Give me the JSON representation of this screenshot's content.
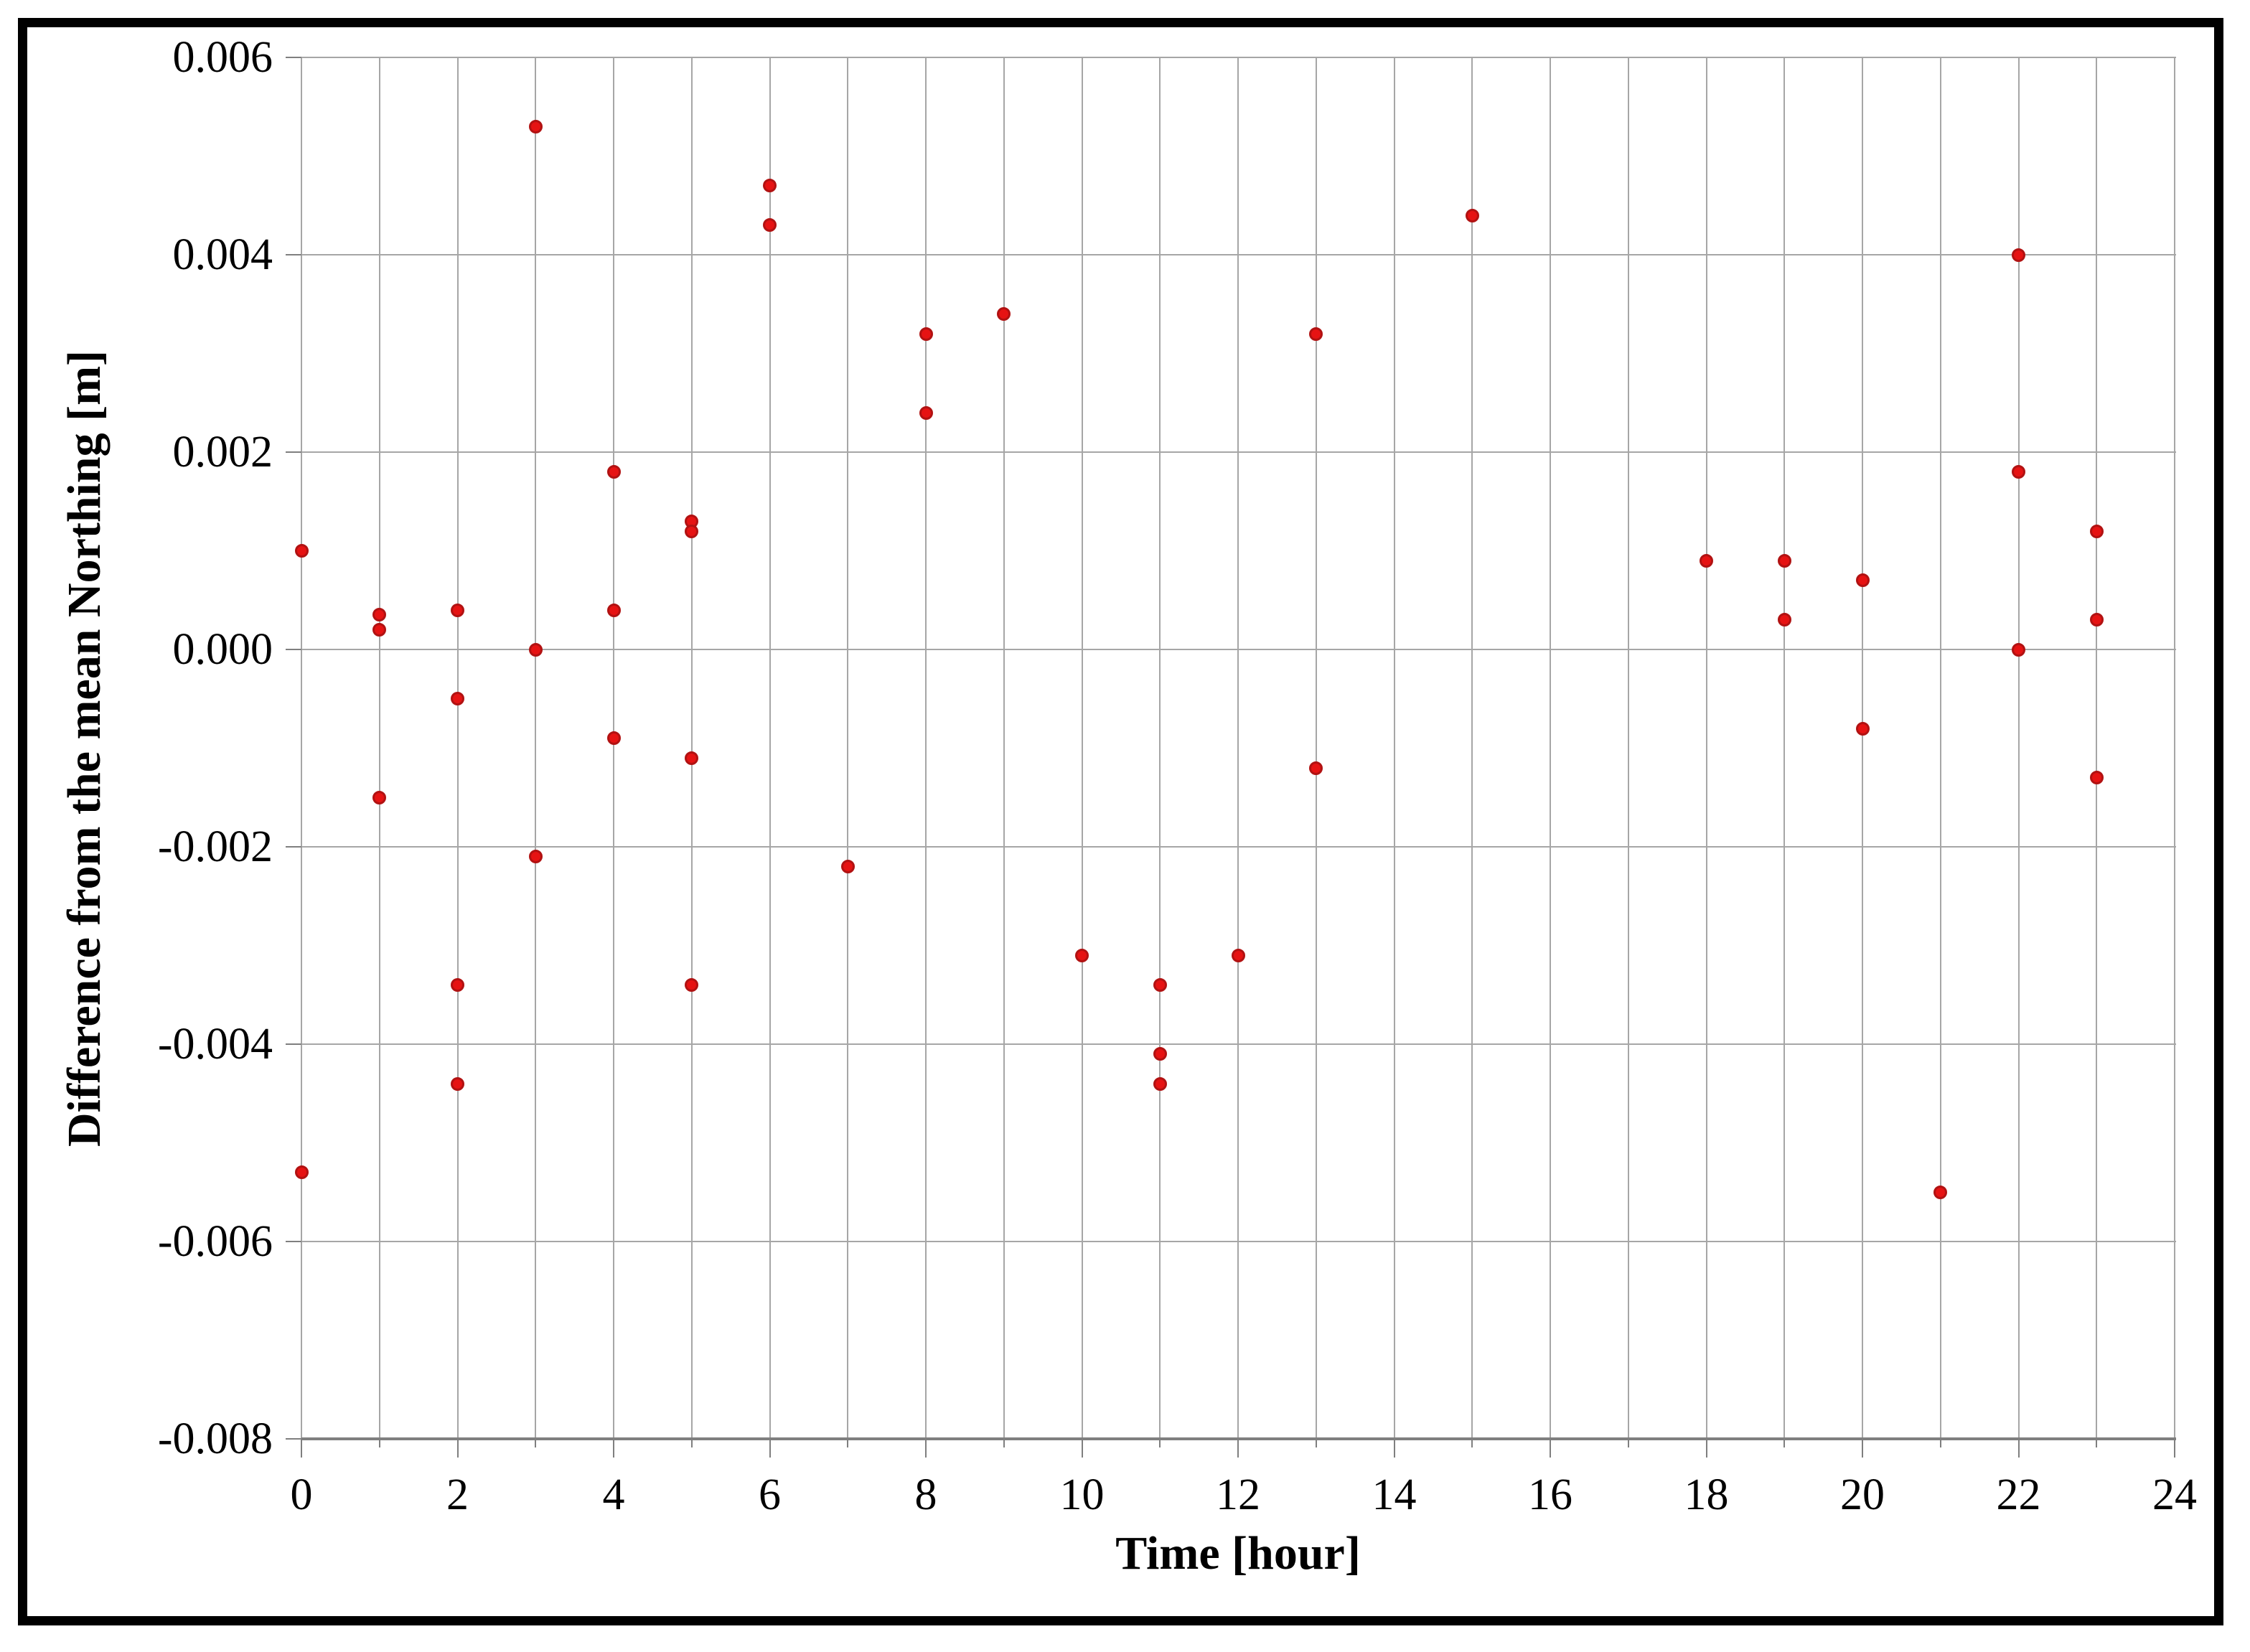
{
  "figure": {
    "background": "#ffffff",
    "frame_color": "#000000"
  },
  "chart_data": {
    "type": "scatter",
    "title": "",
    "xlabel": "Time [hour]",
    "ylabel": "Difference from the mean Northing  [m]",
    "xlim": [
      0,
      24
    ],
    "ylim": [
      -0.008,
      0.006
    ],
    "grid": true,
    "x_gridline_step": 1,
    "y_gridline_step": 0.002,
    "legend_position": "none",
    "marker_color": "#e61313",
    "marker_edge_color": "#b11212",
    "gridline_color": "#a6a6a6",
    "axis_color": "#7f7f7f",
    "x_ticks": [
      0,
      2,
      4,
      6,
      8,
      10,
      12,
      14,
      16,
      18,
      20,
      22,
      24
    ],
    "x_tick_labels": [
      "0",
      "2",
      "4",
      "6",
      "8",
      "10",
      "12",
      "14",
      "16",
      "18",
      "20",
      "22",
      "24"
    ],
    "y_ticks": [
      0.006,
      0.004,
      0.002,
      0.0,
      -0.002,
      -0.004,
      -0.006,
      -0.008
    ],
    "y_tick_labels": [
      "0.006",
      "0.004",
      "0.002",
      "0.000",
      "-0.002",
      "-0.004",
      "-0.006",
      "-0.008"
    ],
    "points": [
      [
        0,
        0.001
      ],
      [
        0,
        -0.0053
      ],
      [
        1,
        0.00035
      ],
      [
        1,
        0.0002
      ],
      [
        1,
        -0.0015
      ],
      [
        2,
        0.0004
      ],
      [
        2,
        -0.0005
      ],
      [
        2,
        -0.0034
      ],
      [
        2,
        -0.0044
      ],
      [
        3,
        0.0053
      ],
      [
        3,
        0.0
      ],
      [
        3,
        -0.0021
      ],
      [
        4,
        0.0018
      ],
      [
        4,
        0.0004
      ],
      [
        4,
        -0.0009
      ],
      [
        5,
        0.0013
      ],
      [
        5,
        0.0012
      ],
      [
        5,
        -0.0011
      ],
      [
        5,
        -0.0034
      ],
      [
        6,
        0.0047
      ],
      [
        6,
        0.0043
      ],
      [
        7,
        -0.0022
      ],
      [
        8,
        0.0032
      ],
      [
        8,
        0.0024
      ],
      [
        9,
        0.0034
      ],
      [
        10,
        -0.0031
      ],
      [
        11,
        -0.0034
      ],
      [
        11,
        -0.0041
      ],
      [
        11,
        -0.0044
      ],
      [
        12,
        -0.0031
      ],
      [
        13,
        0.0032
      ],
      [
        13,
        -0.0012
      ],
      [
        15,
        0.0044
      ],
      [
        18,
        0.0009
      ],
      [
        19,
        0.0009
      ],
      [
        19,
        0.0003
      ],
      [
        20,
        0.0007
      ],
      [
        20,
        -0.0008
      ],
      [
        21,
        -0.0055
      ],
      [
        22,
        0.004
      ],
      [
        22,
        0.0018
      ],
      [
        22,
        0.0
      ],
      [
        23,
        0.0012
      ],
      [
        23,
        0.0003
      ],
      [
        23,
        -0.0013
      ]
    ]
  }
}
